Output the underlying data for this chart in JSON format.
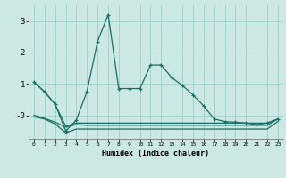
{
  "xlabel": "Humidex (Indice chaleur)",
  "bg_color": "#cce8e5",
  "grid_color": "#9ecfca",
  "line_color": "#1a6e64",
  "xlim": [
    -0.5,
    23.5
  ],
  "ylim": [
    -0.75,
    3.5
  ],
  "xticks": [
    0,
    1,
    2,
    3,
    4,
    5,
    6,
    7,
    8,
    9,
    10,
    11,
    12,
    13,
    14,
    15,
    16,
    17,
    18,
    19,
    20,
    21,
    22,
    23
  ],
  "yticks": [
    0,
    1,
    2,
    3
  ],
  "ytick_labels": [
    "-0",
    "1",
    "2",
    "3"
  ],
  "series_main": [
    1.05,
    0.75,
    0.35,
    -0.5,
    -0.15,
    0.75,
    2.35,
    3.2,
    0.85,
    0.85,
    0.85,
    1.6,
    1.6,
    1.2,
    0.95,
    0.65,
    0.3,
    -0.12,
    -0.2,
    -0.22,
    -0.25,
    -0.3,
    -0.25,
    -0.12
  ],
  "series2": [
    1.05,
    0.75,
    0.35,
    -0.35,
    -0.25,
    -0.25,
    -0.25,
    -0.25,
    -0.25,
    -0.25,
    -0.25,
    -0.25,
    -0.25,
    -0.25,
    -0.25,
    -0.25,
    -0.25,
    -0.25,
    -0.25,
    -0.25,
    -0.25,
    -0.25,
    -0.25,
    -0.12
  ],
  "series3": [
    0.0,
    -0.1,
    -0.22,
    -0.38,
    -0.3,
    -0.32,
    -0.32,
    -0.32,
    -0.32,
    -0.32,
    -0.32,
    -0.32,
    -0.32,
    -0.32,
    -0.32,
    -0.32,
    -0.32,
    -0.32,
    -0.32,
    -0.32,
    -0.32,
    -0.32,
    -0.32,
    -0.12
  ],
  "series4": [
    -0.05,
    -0.12,
    -0.28,
    -0.56,
    -0.44,
    -0.44,
    -0.44,
    -0.44,
    -0.44,
    -0.44,
    -0.44,
    -0.44,
    -0.44,
    -0.44,
    -0.44,
    -0.44,
    -0.44,
    -0.44,
    -0.44,
    -0.44,
    -0.44,
    -0.44,
    -0.44,
    -0.2
  ]
}
